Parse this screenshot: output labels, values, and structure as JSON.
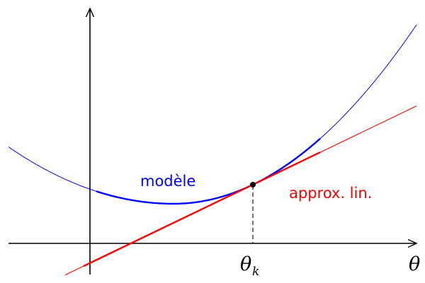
{
  "diagram": {
    "curve_label": "modèle",
    "line_label": "approx. lin.",
    "point_label_main": "θ",
    "point_label_sub": "k",
    "axis_label": "θ",
    "colors": {
      "curve": "#0000ff",
      "line": "#ff0000",
      "axes": "#000000",
      "point": "#000000",
      "dashed": "#000000"
    },
    "icons": {
      "y_axis_arrow": "arrowhead-up",
      "x_axis_arrow": "arrowhead-right",
      "tangent_point": "filled-dot"
    }
  }
}
